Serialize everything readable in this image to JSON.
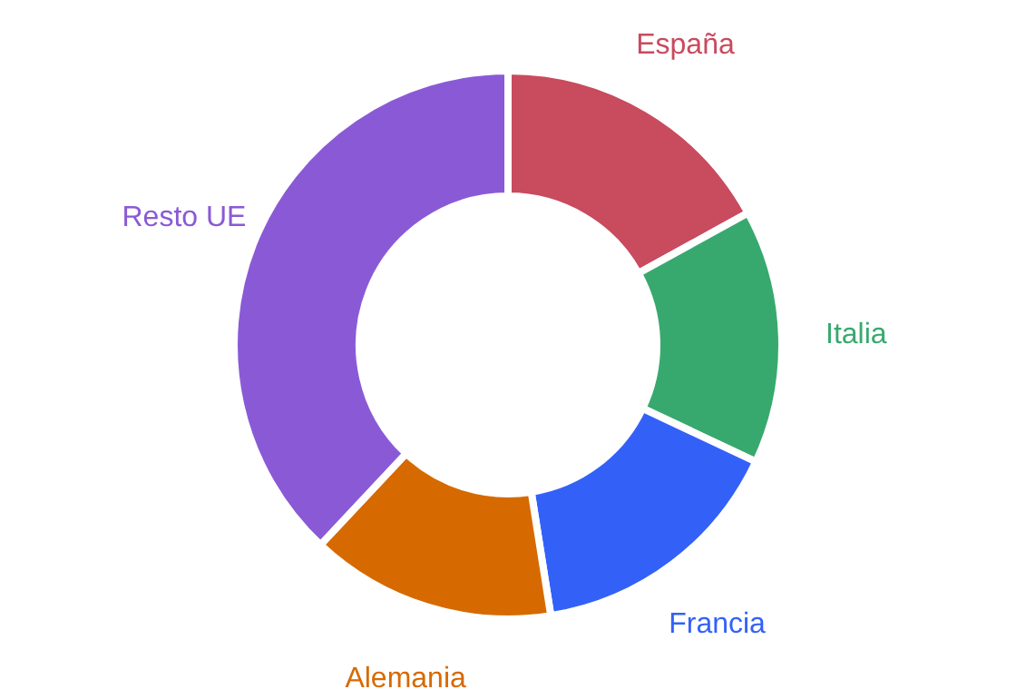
{
  "chart_data": {
    "type": "donut",
    "categories": [
      "España",
      "Italia",
      "Francia",
      "Alemania",
      "Resto UE"
    ],
    "values": [
      17,
      15,
      15.5,
      14.5,
      38
    ],
    "colors": [
      "#c84b5e",
      "#38a96e",
      "#3361f8",
      "#d66a00",
      "#8a5ad6"
    ]
  }
}
